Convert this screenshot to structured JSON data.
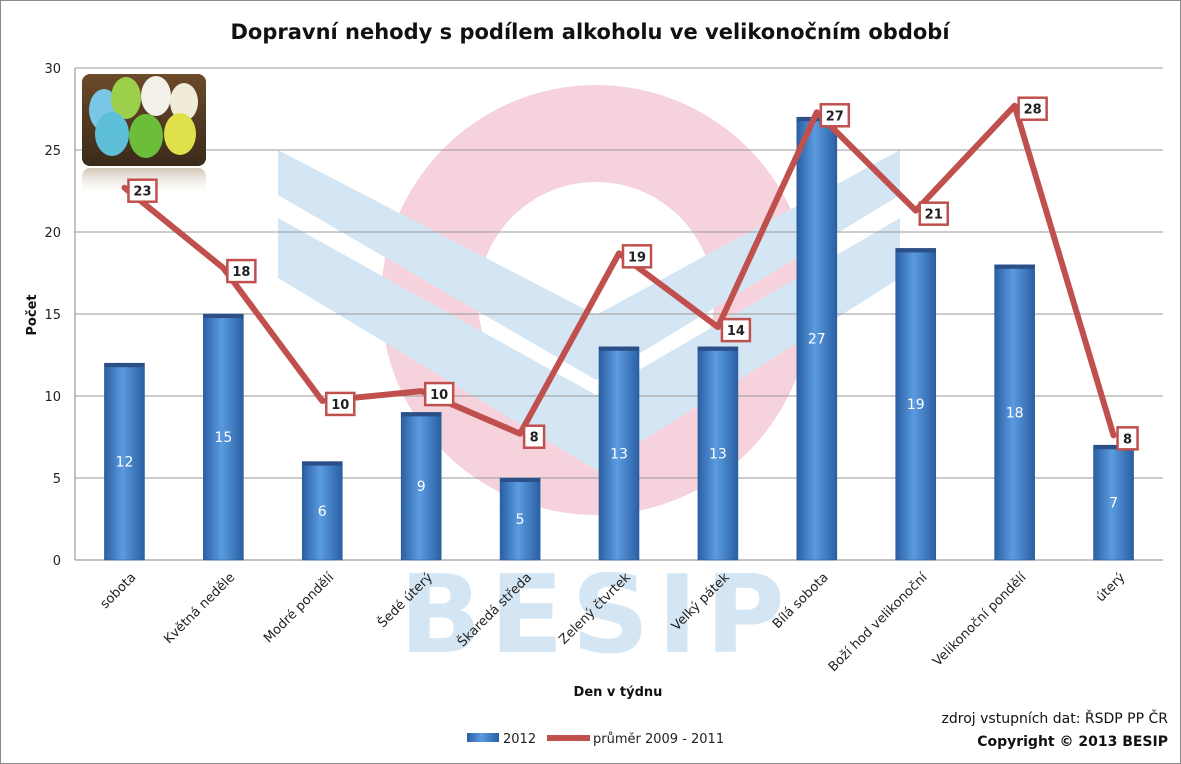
{
  "chart_data": {
    "type": "bar",
    "title": "Dopravní nehody s podílem alkoholu ve velikonočním období",
    "xlabel": "Den v týdnu",
    "ylabel": "Počet",
    "ylim": [
      0,
      30
    ],
    "yticks": [
      0,
      5,
      10,
      15,
      20,
      25,
      30
    ],
    "grid": true,
    "legend_position": "bottom",
    "categories": [
      "sobota",
      "Květná neděle",
      "Modré pondělí",
      "Šedé úterý",
      "Škaredá středa",
      "Zelený čtvrtek",
      "Velký pátek",
      "Bílá sobota",
      "Boží hod velikonoční",
      "Velikonoční pondělí",
      "úterý"
    ],
    "series": [
      {
        "name": "2012",
        "type": "bar",
        "color": "#3f7fce",
        "values": [
          12,
          15,
          6,
          9,
          5,
          13,
          13,
          27,
          19,
          18,
          7
        ]
      },
      {
        "name": "průměr 2009 - 2011",
        "type": "line",
        "color": "#c0504d",
        "values": [
          23,
          18,
          10,
          10,
          8,
          19,
          14,
          27,
          21,
          28,
          8
        ]
      }
    ],
    "line_label_values": [
      "23",
      "18",
      "10",
      "10",
      "8",
      "19",
      "14",
      "27",
      "21",
      "28",
      "8"
    ],
    "line_positions_approx": [
      22.7,
      17.8,
      9.7,
      10.3,
      7.7,
      18.7,
      14.2,
      27.3,
      21.3,
      27.7,
      7.6
    ]
  },
  "footer": {
    "source": "zdroj vstupních dat: ŘSDP PP ČR",
    "copyright": "Copyright © 2013  BESIP"
  },
  "watermark": {
    "text": "BESIP"
  },
  "colors": {
    "bar": "#3f7fce",
    "line": "#c0504d",
    "watermark_blue": "#d4e6f3",
    "watermark_pink": "#f6d3dc"
  }
}
